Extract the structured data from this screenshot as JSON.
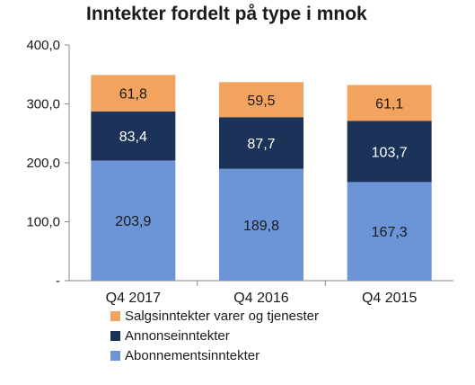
{
  "chart_data": {
    "type": "bar",
    "stacked": true,
    "title": "Inntekter fordelt på type i mnok",
    "categories": [
      "Q4 2017",
      "Q4 2016",
      "Q4 2015"
    ],
    "y_ticks": [
      "-",
      "100,0",
      "200,0",
      "300,0",
      "400,0"
    ],
    "ylim": [
      0,
      400
    ],
    "series": [
      {
        "name": "Abonnementsinntekter",
        "values": [
          203.9,
          189.8,
          167.3
        ],
        "labels": [
          "203,9",
          "189,8",
          "167,3"
        ],
        "color": "#6b95d6",
        "label_color": "#1a1a1a"
      },
      {
        "name": "Annonseinntekter",
        "values": [
          83.4,
          87.7,
          103.7
        ],
        "labels": [
          "83,4",
          "87,7",
          "103,7"
        ],
        "color": "#1b3358",
        "label_color": "#ffffff"
      },
      {
        "name": "Salgsinntekter varer og tjenester",
        "values": [
          61.8,
          59.5,
          61.1
        ],
        "labels": [
          "61,8",
          "59,5",
          "61,1"
        ],
        "color": "#f2a35f",
        "label_color": "#1a1a1a"
      }
    ],
    "legend_order": [
      2,
      1,
      0
    ],
    "legend_position": "bottom",
    "grid": false
  }
}
